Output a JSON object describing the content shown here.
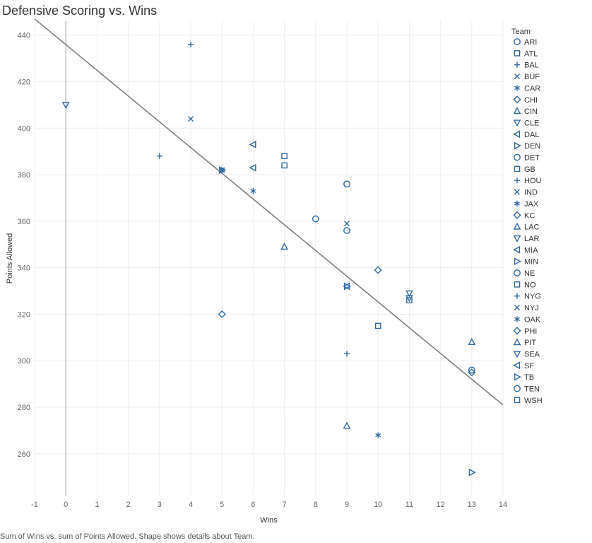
{
  "chart_title": "Defensive Scoring vs. Wins",
  "caption": "Sum of Wins vs. sum of Points Allowed.  Shape shows details about Team.",
  "colors": {
    "mark": "#2e6aa3",
    "trend": "#808080",
    "zero_line": "#b0b0b0",
    "grid": "#eeeeee"
  },
  "chart_data": {
    "type": "scatter",
    "xlabel": "Wins",
    "ylabel": "Points Allowed",
    "xlim": [
      -1,
      14
    ],
    "ylim": [
      242,
      446
    ],
    "xticks": [
      -1,
      0,
      1,
      2,
      3,
      4,
      5,
      6,
      7,
      8,
      9,
      10,
      11,
      12,
      13,
      14
    ],
    "yticks": [
      260,
      280,
      300,
      320,
      340,
      360,
      380,
      400,
      420,
      440
    ],
    "grid": true,
    "trend_line": {
      "x": [
        -1,
        14
      ],
      "y": [
        447,
        281
      ]
    },
    "legend_title": "Team",
    "legend_position": "right",
    "points": [
      {
        "team": "ARI",
        "shape": "circle",
        "x": 9,
        "y": 356
      },
      {
        "team": "ATL",
        "shape": "square",
        "x": 7,
        "y": 384
      },
      {
        "team": "BAL",
        "shape": "plus",
        "x": 4,
        "y": 436
      },
      {
        "team": "BUF",
        "shape": "x",
        "x": 9,
        "y": 359
      },
      {
        "team": "CAR",
        "shape": "asterisk",
        "x": 6,
        "y": 373
      },
      {
        "team": "CHI",
        "shape": "diamond",
        "x": 5,
        "y": 320
      },
      {
        "team": "CIN",
        "shape": "tri-up",
        "x": 7,
        "y": 349
      },
      {
        "team": "CLE",
        "shape": "tri-down",
        "x": 0,
        "y": 410
      },
      {
        "team": "DAL",
        "shape": "tri-left",
        "x": 6,
        "y": 383
      },
      {
        "team": "DEN",
        "shape": "tri-right",
        "x": 5,
        "y": 382
      },
      {
        "team": "DET",
        "shape": "circle",
        "x": 8,
        "y": 361
      },
      {
        "team": "GB",
        "shape": "square",
        "x": 7,
        "y": 388
      },
      {
        "team": "HOU",
        "shape": "plus",
        "x": 9,
        "y": 303
      },
      {
        "team": "IND",
        "shape": "x",
        "x": 4,
        "y": 404
      },
      {
        "team": "JAX",
        "shape": "asterisk",
        "x": 10,
        "y": 268
      },
      {
        "team": "KC",
        "shape": "diamond",
        "x": 10,
        "y": 339
      },
      {
        "team": "LAC",
        "shape": "tri-up",
        "x": 13,
        "y": 308
      },
      {
        "team": "LAR",
        "shape": "tri-down",
        "x": 11,
        "y": 329
      },
      {
        "team": "MIA",
        "shape": "tri-left",
        "x": 6,
        "y": 393
      },
      {
        "team": "MIN",
        "shape": "tri-right",
        "x": 13,
        "y": 252
      },
      {
        "team": "NE",
        "shape": "circle",
        "x": 13,
        "y": 296
      },
      {
        "team": "NO",
        "shape": "square",
        "x": 11,
        "y": 326
      },
      {
        "team": "NYG",
        "shape": "plus",
        "x": 3,
        "y": 388
      },
      {
        "team": "NYJ",
        "shape": "x",
        "x": 5,
        "y": 382
      },
      {
        "team": "OAK",
        "shape": "asterisk",
        "x": 5,
        "y": 382
      },
      {
        "team": "PHI",
        "shape": "diamond",
        "x": 13,
        "y": 295
      },
      {
        "team": "PIT",
        "shape": "tri-up",
        "x": 9,
        "y": 272
      },
      {
        "team": "SEA",
        "shape": "tri-down",
        "x": 11,
        "y": 327
      },
      {
        "team": "SF",
        "shape": "tri-left",
        "x": 9,
        "y": 332
      },
      {
        "team": "TB",
        "shape": "tri-right",
        "x": 9,
        "y": 332
      },
      {
        "team": "TEN",
        "shape": "circle",
        "x": 9,
        "y": 376
      },
      {
        "team": "WSH",
        "shape": "square",
        "x": 10,
        "y": 315
      }
    ]
  }
}
